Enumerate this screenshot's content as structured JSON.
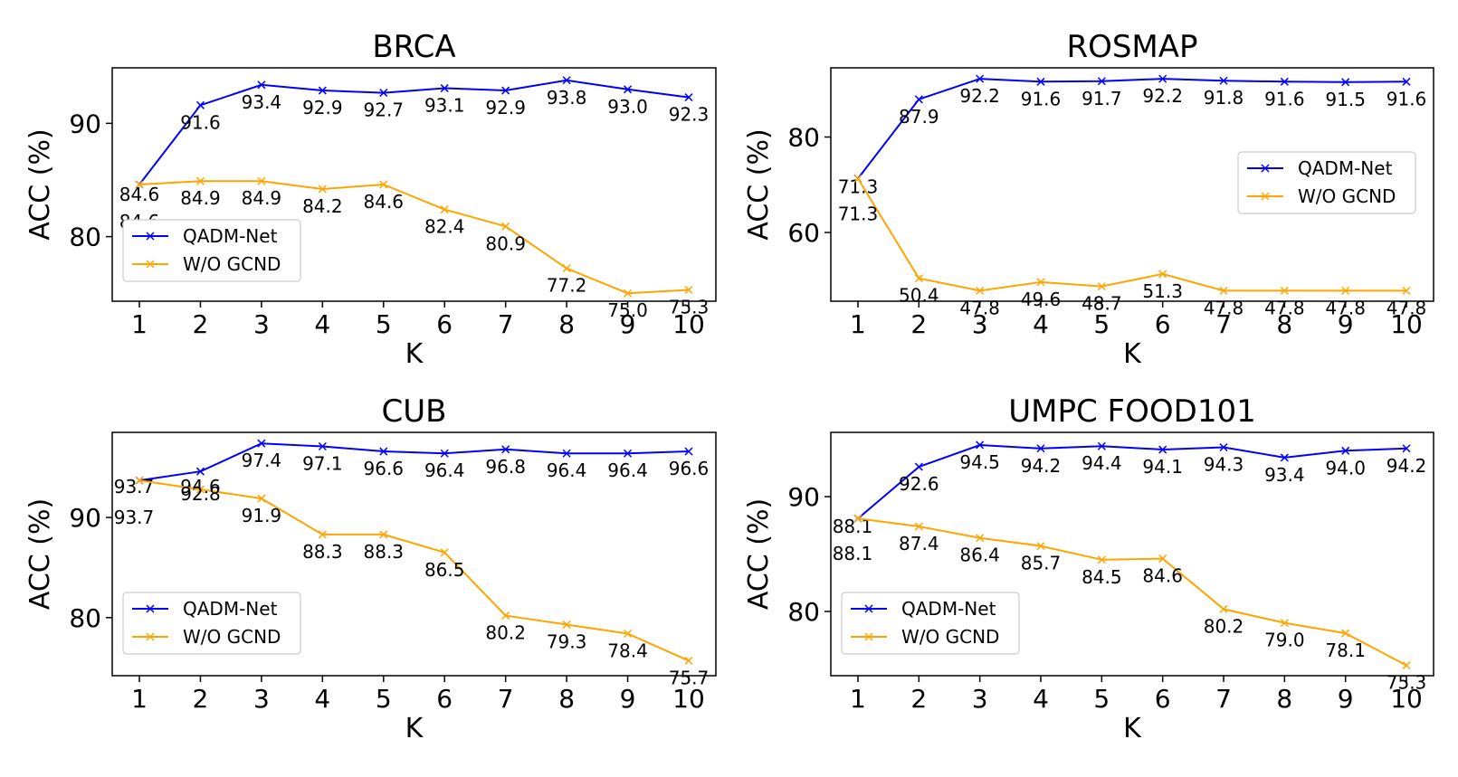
{
  "colors": {
    "qadm": "#0000ff",
    "wogcnd": "#ffa500"
  },
  "chart_data": [
    {
      "type": "line",
      "title": "BRCA",
      "xlabel": "K",
      "ylabel": "ACC (%)",
      "x": [
        1,
        2,
        3,
        4,
        5,
        6,
        7,
        8,
        9,
        10
      ],
      "ylim": [
        74.3,
        94.9
      ],
      "yticks": [
        80,
        90
      ],
      "legend": "lower-left",
      "series": [
        {
          "name": "QADM-Net",
          "values": [
            84.6,
            91.6,
            93.4,
            92.9,
            92.7,
            93.1,
            92.9,
            93.8,
            93.0,
            92.3
          ]
        },
        {
          "name": "W/O GCND",
          "values": [
            84.6,
            84.9,
            84.9,
            84.2,
            84.6,
            82.4,
            80.9,
            77.2,
            75.0,
            75.3
          ]
        }
      ]
    },
    {
      "type": "line",
      "title": "ROSMAP",
      "xlabel": "K",
      "ylabel": "ACC (%)",
      "x": [
        1,
        2,
        3,
        4,
        5,
        6,
        7,
        8,
        9,
        10
      ],
      "ylim": [
        45.6,
        94.5
      ],
      "yticks": [
        60,
        80
      ],
      "legend": "center-right",
      "series": [
        {
          "name": "QADM-Net",
          "values": [
            71.3,
            87.9,
            92.2,
            91.6,
            91.7,
            92.2,
            91.8,
            91.6,
            91.5,
            91.6
          ]
        },
        {
          "name": "W/O GCND",
          "values": [
            71.3,
            50.4,
            47.8,
            49.6,
            48.7,
            51.3,
            47.8,
            47.8,
            47.8,
            47.8
          ]
        }
      ]
    },
    {
      "type": "line",
      "title": "CUB",
      "xlabel": "K",
      "ylabel": "ACC (%)",
      "x": [
        1,
        2,
        3,
        4,
        5,
        6,
        7,
        8,
        9,
        10
      ],
      "ylim": [
        74.2,
        98.5
      ],
      "yticks": [
        80,
        90
      ],
      "legend": "lower-left",
      "series": [
        {
          "name": "QADM-Net",
          "values": [
            93.7,
            94.6,
            97.4,
            97.1,
            96.6,
            96.4,
            96.8,
            96.4,
            96.4,
            96.6
          ]
        },
        {
          "name": "W/O GCND",
          "values": [
            93.7,
            92.8,
            91.9,
            88.3,
            88.3,
            86.5,
            80.2,
            79.3,
            78.4,
            75.7
          ]
        }
      ]
    },
    {
      "type": "line",
      "title": "UMPC FOOD101",
      "xlabel": "K",
      "ylabel": "ACC (%)",
      "x": [
        1,
        2,
        3,
        4,
        5,
        6,
        7,
        8,
        9,
        10
      ],
      "ylim": [
        74.4,
        95.6
      ],
      "yticks": [
        80,
        90
      ],
      "legend": "lower-left",
      "series": [
        {
          "name": "QADM-Net",
          "values": [
            88.1,
            92.6,
            94.5,
            94.2,
            94.4,
            94.1,
            94.3,
            93.4,
            94.0,
            94.2
          ]
        },
        {
          "name": "W/O GCND",
          "values": [
            88.1,
            87.4,
            86.4,
            85.7,
            84.5,
            84.6,
            80.2,
            79.0,
            78.1,
            75.3
          ]
        }
      ]
    }
  ]
}
